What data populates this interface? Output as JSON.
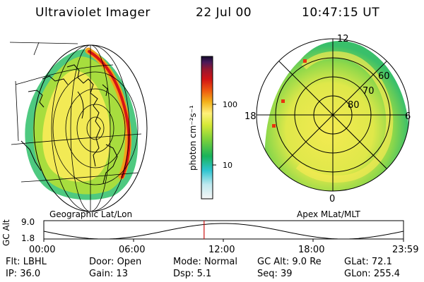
{
  "header": {
    "instrument": "Ultraviolet Imager",
    "date": "22 Jul 00",
    "time": "10:47:15 UT"
  },
  "colorbar": {
    "unit_label": "photon cm⁻²s⁻¹",
    "ticks": [
      "100",
      "10"
    ]
  },
  "geo_panel": {
    "label": "Geographic Lat/Lon"
  },
  "polar_panel": {
    "label": "Apex MLat/MLT",
    "mlt_labels": {
      "top": "12",
      "left": "18",
      "right": "6",
      "bottom": "0"
    },
    "lat_labels": [
      "60",
      "70",
      "80"
    ]
  },
  "altitude_plot": {
    "ylabel": "GC Alt",
    "yticks": [
      "9.0",
      "1.8"
    ],
    "xticks": [
      "00:00",
      "06:00",
      "12:00",
      "18:00",
      "23:59"
    ],
    "current_time_fraction": 0.4455
  },
  "status": {
    "filter": {
      "label": "Flt:",
      "value": "LBHL"
    },
    "door": {
      "label": "Door:",
      "value": "Open"
    },
    "mode": {
      "label": "Mode:",
      "value": "Normal"
    },
    "gc_alt": {
      "label": "GC Alt:",
      "value": "9.0 Re"
    },
    "glat": {
      "label": "GLat:",
      "value": "72.1"
    },
    "ip": {
      "label": "IP:",
      "value": "36.0"
    },
    "gain": {
      "label": "Gain:",
      "value": "13"
    },
    "dsp": {
      "label": "Dsp:",
      "value": "5.1"
    },
    "seq": {
      "label": "Seq:",
      "value": "39"
    },
    "glon": {
      "label": "GLon:",
      "value": "255.4"
    }
  }
}
